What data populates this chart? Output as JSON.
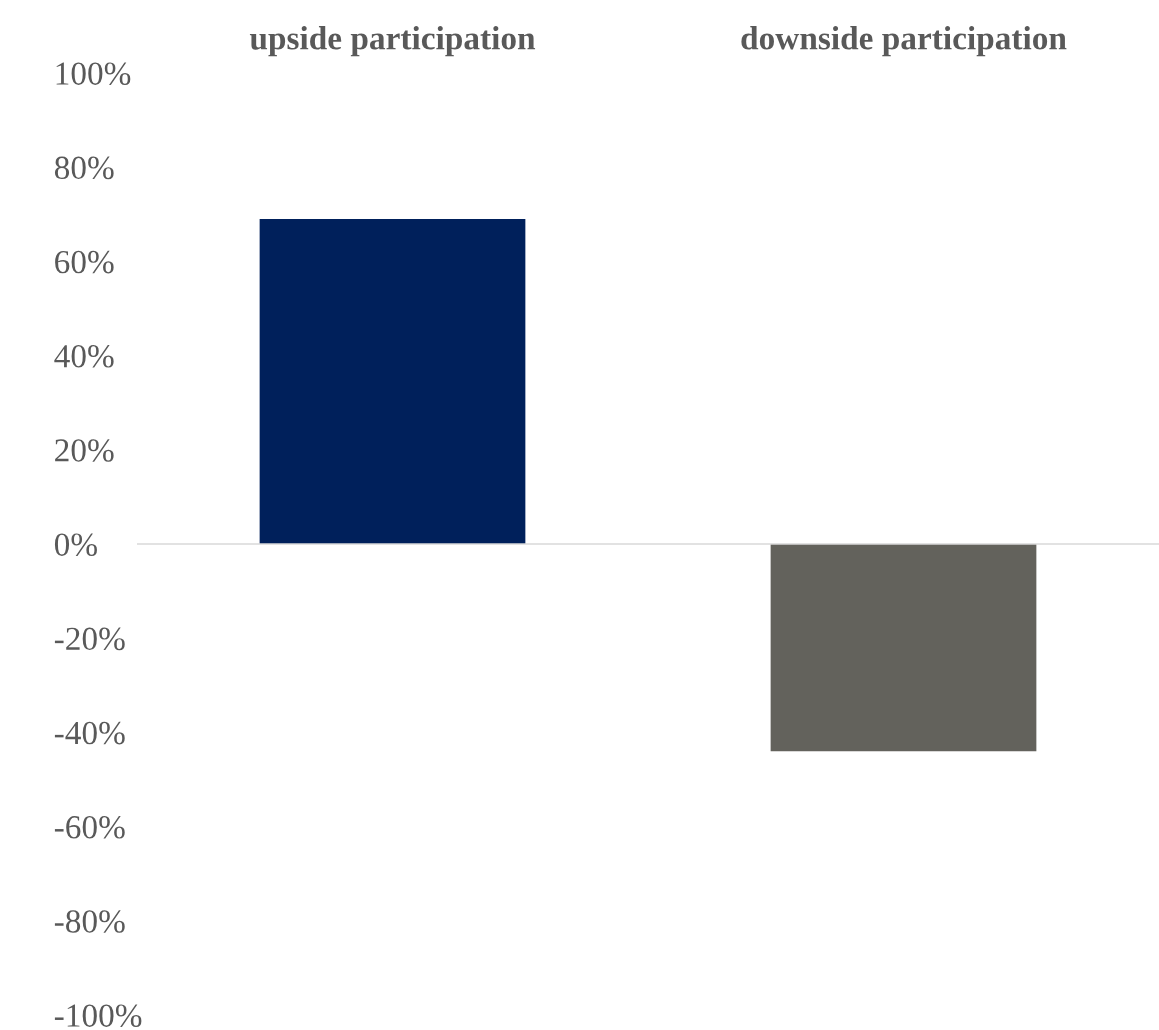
{
  "chart_data": {
    "type": "bar",
    "categories": [
      "upside participation",
      "downside participation"
    ],
    "values": [
      69,
      -44
    ],
    "colors": [
      "#00205b",
      "#63625c"
    ],
    "ylim": [
      -100,
      100
    ],
    "yticks": [
      {
        "value": -100,
        "label": "-100%"
      },
      {
        "value": -80,
        "label": "-80%"
      },
      {
        "value": -60,
        "label": "-60%"
      },
      {
        "value": -40,
        "label": "-40%"
      },
      {
        "value": -20,
        "label": "-20%"
      },
      {
        "value": 0,
        "label": "0%"
      },
      {
        "value": 20,
        "label": "20%"
      },
      {
        "value": 40,
        "label": "40%"
      },
      {
        "value": 60,
        "label": "60%"
      },
      {
        "value": 80,
        "label": "80%"
      },
      {
        "value": 100,
        "label": "100%"
      }
    ],
    "ref_lines": [
      {
        "axis": "y",
        "value": 0,
        "color": "#d9d9d9"
      }
    ],
    "legend": false
  }
}
